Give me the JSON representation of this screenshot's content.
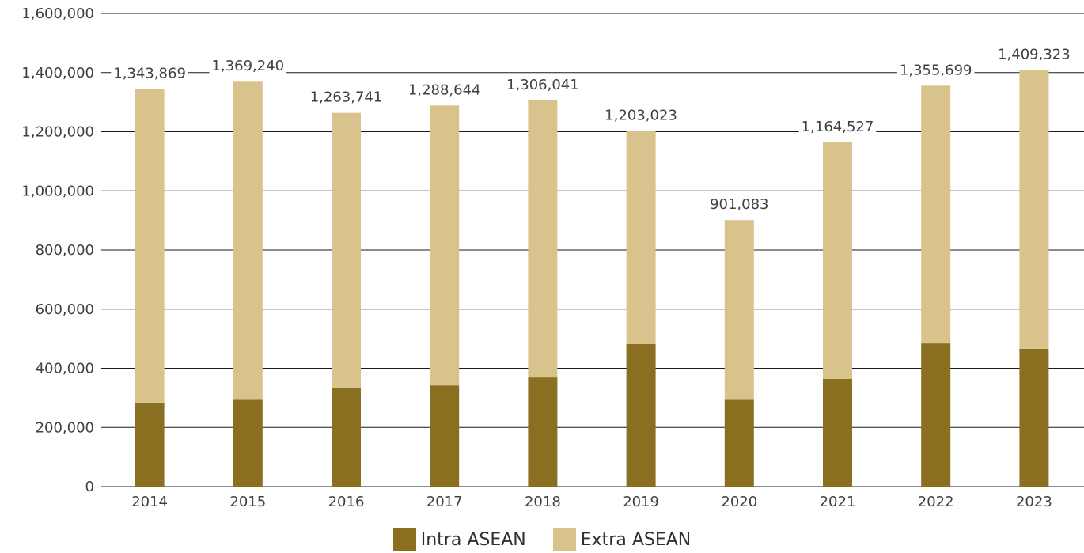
{
  "colors": {
    "intra": "#8a6f20",
    "extra": "#d9c38c",
    "grid": "#1a1a1a",
    "text": "#404040"
  },
  "chart_data": {
    "type": "bar",
    "stacked": true,
    "categories": [
      "2014",
      "2015",
      "2016",
      "2017",
      "2018",
      "2019",
      "2020",
      "2021",
      "2022",
      "2023"
    ],
    "series": [
      {
        "name": "Intra ASEAN",
        "values": [
          284000,
          296000,
          333000,
          342000,
          369000,
          482000,
          296000,
          364000,
          484000,
          466000
        ]
      },
      {
        "name": "Extra ASEAN",
        "values": [
          1059869,
          1073240,
          930741,
          946644,
          937041,
          721023,
          605083,
          800527,
          871699,
          943323
        ]
      }
    ],
    "totals": [
      1343869,
      1369240,
      1263741,
      1288644,
      1306041,
      1203023,
      901083,
      1164527,
      1355699,
      1409323
    ],
    "total_labels": [
      "1,343,869",
      "1,369,240",
      "1,263,741",
      "1,288,644",
      "1,306,041",
      "1,203,023",
      "901,083",
      "1,164,527",
      "1,355,699",
      "1,409,323"
    ],
    "yticks": [
      0,
      200000,
      400000,
      600000,
      800000,
      1000000,
      1200000,
      1400000,
      1600000
    ],
    "ytick_labels": [
      "0",
      "200,000",
      "400,000",
      "600,000",
      "800,000",
      "1,000,000",
      "1,200,000",
      "1,400,000",
      "1,600,000"
    ],
    "ylim": [
      0,
      1600000
    ],
    "grid": true,
    "legend_position": "bottom-center"
  },
  "legend": {
    "intra_label": "Intra ASEAN",
    "extra_label": "Extra ASEAN"
  }
}
